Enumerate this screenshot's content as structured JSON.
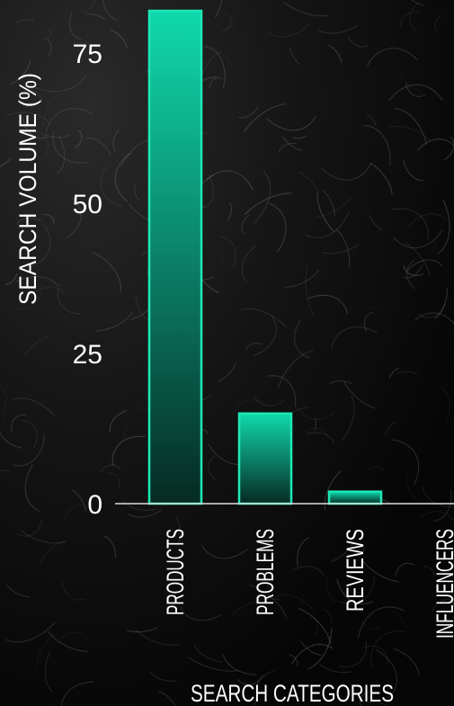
{
  "chart_data": {
    "type": "bar",
    "xlabel": "SEARCH CATEGORIES",
    "ylabel": "SEARCH VOLUME (%)",
    "categories": [
      "PRODUCTS",
      "PROBLEMS",
      "REVIEWS",
      "INFLUENCERS"
    ],
    "values": [
      82,
      15,
      2,
      0
    ],
    "ylim": [
      0,
      82
    ],
    "yticks": [
      "0",
      "25",
      "50",
      "75"
    ],
    "ytick_values": [
      0,
      25,
      50,
      75
    ],
    "grid": false,
    "legend": "none"
  },
  "colors": {
    "bar_stroke": "#1de9b6",
    "bar_fill_top": "#10d9ad",
    "bar_fill_bottom": "#062a22",
    "axis_line": "#dddddd",
    "text": "#ffffff"
  },
  "background": "dark-curly-hair-photo"
}
